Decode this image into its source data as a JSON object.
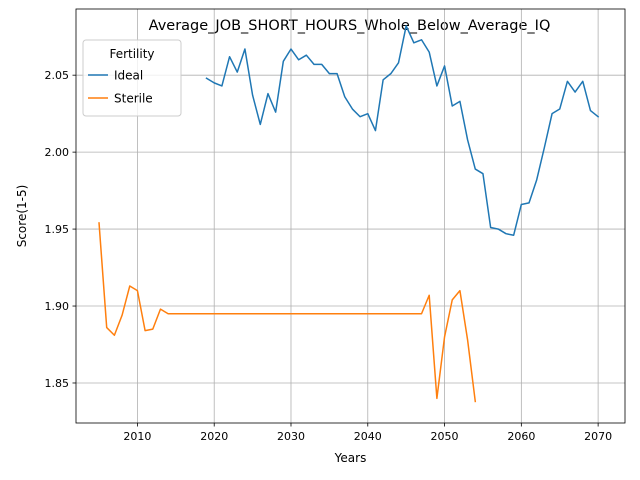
{
  "chart_data": {
    "type": "line",
    "title": "Average_JOB_SHORT_HOURS_Whole_Below_Average_IQ",
    "xlabel": "Years",
    "ylabel": "Score(1-5)",
    "xlim": [
      2002,
      2073.5
    ],
    "ylim": [
      1.824,
      2.093
    ],
    "x_ticks": [
      2010,
      2020,
      2030,
      2040,
      2050,
      2060,
      2070
    ],
    "y_ticks": [
      1.85,
      1.9,
      1.95,
      2.0,
      2.05
    ],
    "x_tick_labels": [
      "2010",
      "2020",
      "2030",
      "2040",
      "2050",
      "2060",
      "2070"
    ],
    "y_tick_labels": [
      "1.85",
      "1.90",
      "1.95",
      "2.00",
      "2.05"
    ],
    "grid": true,
    "legend": {
      "title": "Fertility",
      "placement": "top-left"
    },
    "series": [
      {
        "name": "Ideal",
        "color": "#1f77b4",
        "x": [
          2019,
          2020,
          2021,
          2022,
          2023,
          2024,
          2025,
          2026,
          2027,
          2028,
          2029,
          2030,
          2031,
          2032,
          2033,
          2034,
          2035,
          2036,
          2037,
          2038,
          2039,
          2040,
          2041,
          2042,
          2043,
          2044,
          2045,
          2046,
          2047,
          2048,
          2049,
          2050,
          2051,
          2052,
          2053,
          2054,
          2055,
          2056,
          2057,
          2058,
          2059,
          2060,
          2061,
          2062,
          2063,
          2064,
          2065,
          2066,
          2067,
          2068,
          2069,
          2070
        ],
        "values": [
          2.048,
          2.045,
          2.043,
          2.062,
          2.052,
          2.067,
          2.037,
          2.018,
          2.038,
          2.026,
          2.059,
          2.067,
          2.06,
          2.063,
          2.057,
          2.057,
          2.051,
          2.051,
          2.036,
          2.028,
          2.023,
          2.025,
          2.014,
          2.047,
          2.051,
          2.058,
          2.082,
          2.071,
          2.073,
          2.065,
          2.043,
          2.056,
          2.03,
          2.033,
          2.008,
          1.989,
          1.986,
          1.951,
          1.95,
          1.947,
          1.946,
          1.966,
          1.967,
          1.982,
          2.003,
          2.025,
          2.028,
          2.046,
          2.039,
          2.046,
          2.027,
          2.023
        ]
      },
      {
        "name": "Sterile",
        "color": "#ff7f0e",
        "x": [
          2005,
          2006,
          2007,
          2008,
          2009,
          2010,
          2011,
          2012,
          2013,
          2014,
          2015,
          2016,
          2017,
          2018,
          2019,
          2020,
          2021,
          2022,
          2023,
          2024,
          2025,
          2026,
          2027,
          2028,
          2029,
          2030,
          2031,
          2032,
          2033,
          2034,
          2035,
          2036,
          2037,
          2038,
          2039,
          2040,
          2041,
          2042,
          2043,
          2044,
          2045,
          2046,
          2047,
          2048,
          2049,
          2050,
          2051,
          2052,
          2053,
          2054
        ],
        "values": [
          1.954,
          1.886,
          1.881,
          1.894,
          1.913,
          1.91,
          1.884,
          1.885,
          1.898,
          1.895,
          1.895,
          1.895,
          1.895,
          1.895,
          1.895,
          1.895,
          1.895,
          1.895,
          1.895,
          1.895,
          1.895,
          1.895,
          1.895,
          1.895,
          1.895,
          1.895,
          1.895,
          1.895,
          1.895,
          1.895,
          1.895,
          1.895,
          1.895,
          1.895,
          1.895,
          1.895,
          1.895,
          1.895,
          1.895,
          1.895,
          1.895,
          1.895,
          1.895,
          1.907,
          1.84,
          1.88,
          1.904,
          1.91,
          1.878,
          1.838
        ]
      }
    ]
  }
}
